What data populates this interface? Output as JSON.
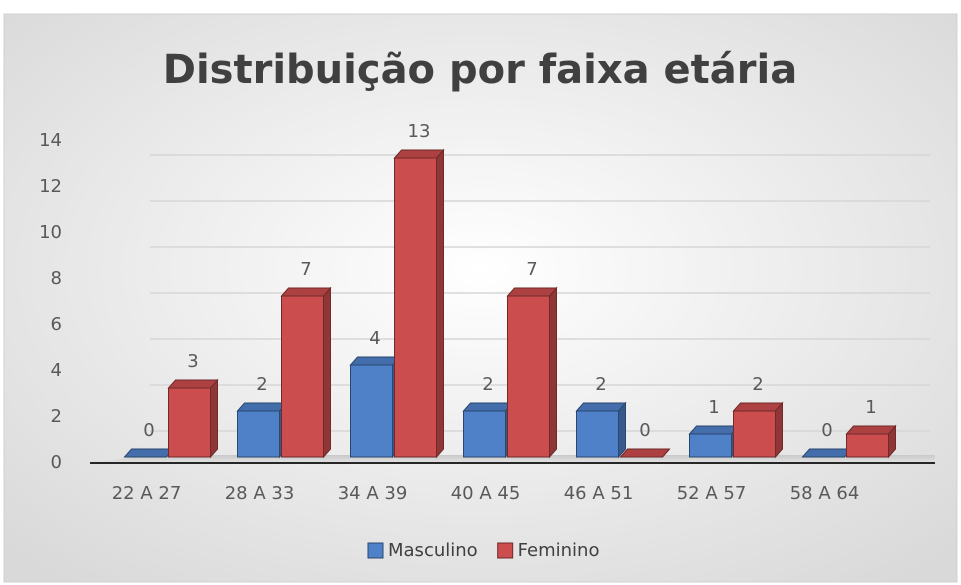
{
  "chart_data": {
    "type": "bar3d",
    "title": "Distribuição por faixa etária",
    "categories": [
      "22 A 27",
      "28 A 33",
      "34 A 39",
      "40 A 45",
      "46 A 51",
      "52 A 57",
      "58 A 64"
    ],
    "series": [
      {
        "name": "Masculino",
        "color": "#4f81c9",
        "values": [
          0,
          2,
          4,
          2,
          2,
          1,
          0
        ]
      },
      {
        "name": "Feminino",
        "color": "#cc4d4d",
        "values": [
          3,
          7,
          13,
          7,
          0,
          2,
          1
        ]
      }
    ],
    "ylim": [
      0,
      14
    ],
    "yticks": [
      0,
      2,
      4,
      6,
      8,
      10,
      12,
      14
    ],
    "grid": true,
    "legend": "bottom"
  }
}
